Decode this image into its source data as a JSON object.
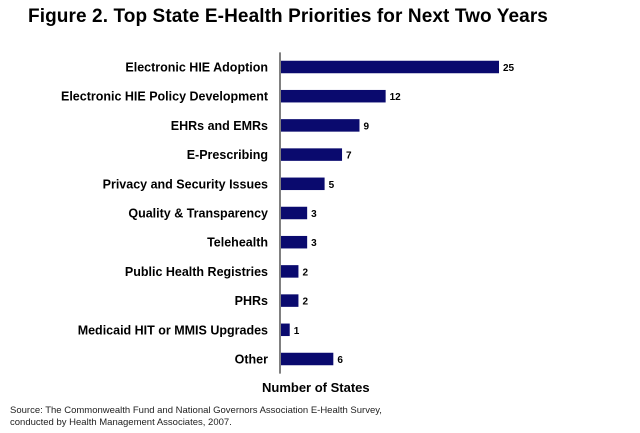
{
  "title": "Figure 2. Top State E-Health Priorities for Next Two Years",
  "source_lines": [
    "Source: The Commonwealth Fund and National Governors Association E-Health Survey,",
    "conducted by Health Management Associates, 2007."
  ],
  "colors": {
    "bar": "#0a0a6e"
  },
  "chart_data": {
    "type": "bar",
    "orientation": "horizontal",
    "title": "Figure 2. Top State E-Health Priorities for Next Two Years",
    "xlabel": "Number of States",
    "ylabel": "",
    "categories": [
      "Electronic HIE Adoption",
      "Electronic HIE Policy Development",
      "EHRs and EMRs",
      "E-Prescribing",
      "Privacy and Security Issues",
      "Quality & Transparency",
      "Telehealth",
      "Public Health Registries",
      "PHRs",
      "Medicaid HIT or MMIS Upgrades",
      "Other"
    ],
    "values": [
      25,
      12,
      9,
      7,
      5,
      3,
      3,
      2,
      2,
      1,
      6
    ],
    "xlim": [
      0,
      25
    ],
    "grid": false,
    "legend": "none"
  }
}
